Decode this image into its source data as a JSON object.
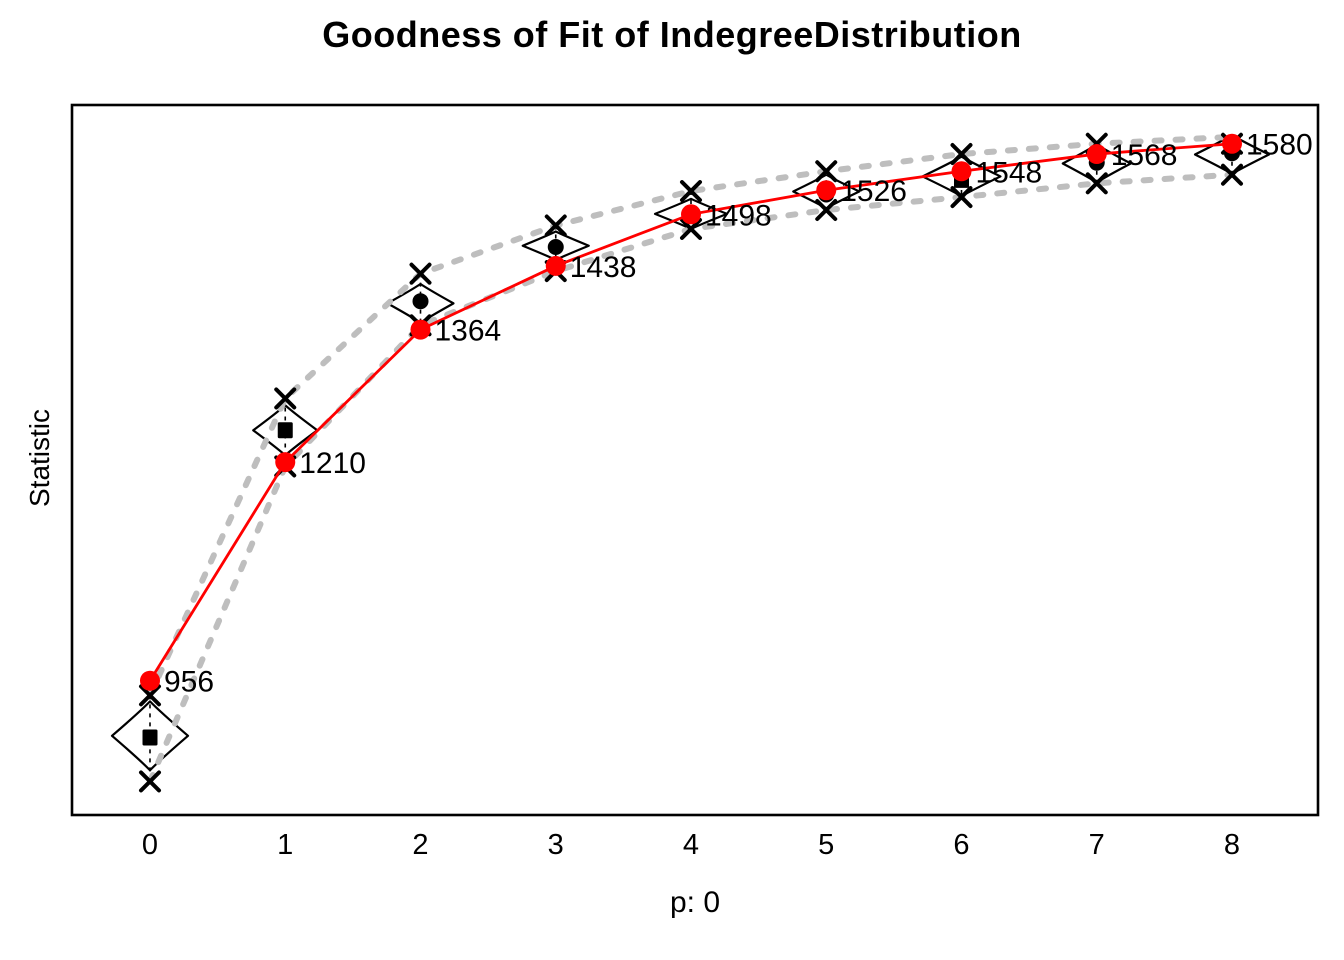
{
  "chart_data": {
    "type": "line",
    "title": "Goodness of Fit of IndegreeDistribution",
    "xlabel": "p: 0",
    "ylabel": "Statistic",
    "x_tick_labels": [
      "0",
      "1",
      "2",
      "3",
      "4",
      "5",
      "6",
      "7",
      "8"
    ],
    "x": [
      0,
      1,
      2,
      3,
      4,
      5,
      6,
      7,
      8
    ],
    "ylim": [
      800,
      1625
    ],
    "grid": false,
    "legend": "none",
    "series": [
      {
        "name": "observed-statistic",
        "style": "solid-line-with-points",
        "color": "#FF0000",
        "values": [
          956,
          1210,
          1364,
          1438,
          1498,
          1526,
          1548,
          1568,
          1580
        ],
        "point_labels": [
          "956",
          "1210",
          "1364",
          "1438",
          "1498",
          "1526",
          "1548",
          "1568",
          "1580"
        ]
      },
      {
        "name": "simulation-upper-band",
        "style": "dashed-line",
        "color": "#BEBEBE",
        "values": [
          939,
          1284,
          1429,
          1485,
          1525,
          1548,
          1568,
          1580,
          1588
        ]
      },
      {
        "name": "simulation-lower-band",
        "style": "dashed-line",
        "color": "#BEBEBE",
        "values": [
          839,
          1205,
          1369,
          1432,
          1481,
          1503,
          1518,
          1534,
          1544
        ]
      },
      {
        "name": "simulation-max-marks",
        "style": "x-marks",
        "color": "#000000",
        "values": [
          939,
          1284,
          1429,
          1485,
          1525,
          1548,
          1568,
          1580,
          1580
        ]
      },
      {
        "name": "simulation-min-marks",
        "style": "x-marks",
        "color": "#000000",
        "values": [
          839,
          1205,
          1369,
          1432,
          1481,
          1503,
          1518,
          1534,
          1544
        ]
      },
      {
        "name": "simulation-median",
        "style": "point-marks",
        "color": "#000000",
        "values": [
          890,
          1247,
          1397,
          1460,
          1496,
          1521,
          1538,
          1558,
          1569
        ],
        "shapes": [
          "square",
          "square",
          "circle",
          "circle",
          "circle",
          "circle",
          "square",
          "circle",
          "circle"
        ]
      }
    ],
    "violins": [
      {
        "x": 0,
        "lo": 852,
        "hi": 932,
        "halfwidth": 38
      },
      {
        "x": 1,
        "lo": 1218,
        "hi": 1276,
        "halfwidth": 32
      },
      {
        "x": 2,
        "lo": 1372,
        "hi": 1417,
        "halfwidth": 33
      },
      {
        "x": 3,
        "lo": 1445,
        "hi": 1478,
        "halfwidth": 33
      },
      {
        "x": 4,
        "lo": 1481,
        "hi": 1516,
        "halfwidth": 36
      },
      {
        "x": 5,
        "lo": 1505,
        "hi": 1544,
        "halfwidth": 33
      },
      {
        "x": 6,
        "lo": 1519,
        "hi": 1565,
        "halfwidth": 39
      },
      {
        "x": 7,
        "lo": 1535,
        "hi": 1579,
        "halfwidth": 34
      },
      {
        "x": 8,
        "lo": 1545,
        "hi": 1590,
        "halfwidth": 37
      }
    ],
    "colors": {
      "observed": "#FF0000",
      "band": "#BEBEBE",
      "marks": "#000000",
      "border": "#000000",
      "background": "#FFFFFF",
      "text": "#000000"
    }
  }
}
